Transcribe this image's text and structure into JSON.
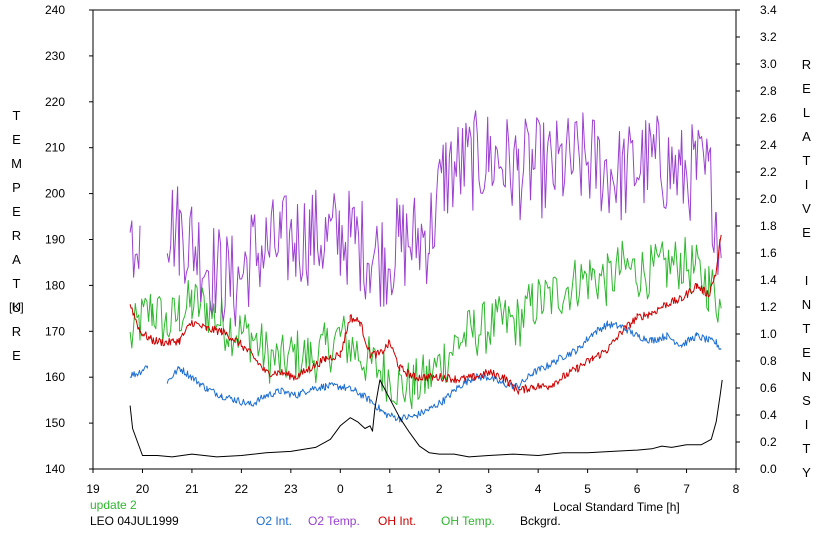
{
  "chart_data": {
    "type": "line",
    "xlabel": "Local Standard Time [h]",
    "y_left_label": "TEMPERATURE",
    "y_left_unit": "[K]",
    "y_right_label": "RELATIVE INTENSITY",
    "x_tick_labels": [
      "19",
      "20",
      "21",
      "22",
      "23",
      "0",
      "1",
      "2",
      "3",
      "4",
      "5",
      "6",
      "7",
      "8"
    ],
    "x_range": [
      19,
      32
    ],
    "y_left_ticks": [
      140,
      150,
      160,
      170,
      180,
      190,
      200,
      210,
      220,
      230,
      240
    ],
    "y_left_range": [
      140,
      240
    ],
    "y_right_ticks": [
      "0.0",
      "0.2",
      "0.4",
      "0.6",
      "0.8",
      "1.0",
      "1.2",
      "1.4",
      "1.6",
      "1.8",
      "2.0",
      "2.2",
      "2.4",
      "2.6",
      "2.8",
      "3.0",
      "3.2",
      "3.4"
    ],
    "y_right_range": [
      0,
      3.4
    ],
    "grid": false,
    "legend_position": "bottom",
    "update_note": "update 2",
    "station_date": "LEO 04JUL1999",
    "series": [
      {
        "name": "O2 Int.",
        "color": "#1e6fd0",
        "axis": "left",
        "style": "smooth",
        "amp": 0.8,
        "x": [
          19.75,
          19.9,
          20.1,
          20.35,
          20.5,
          20.75,
          21.0,
          21.3,
          21.6,
          21.9,
          22.2,
          22.5,
          22.8,
          23.1,
          23.4,
          23.7,
          24.0,
          24.3,
          24.6,
          24.9,
          25.2,
          25.5,
          25.8,
          26.1,
          26.4,
          26.7,
          27.0,
          27.3,
          27.6,
          27.9,
          28.2,
          28.5,
          28.8,
          29.1,
          29.4,
          29.7,
          30.0,
          30.3,
          30.6,
          30.9,
          31.2,
          31.45,
          31.6,
          31.7
        ],
        "y": [
          160.5,
          160.8,
          162.5,
          null,
          159,
          162,
          160,
          157.5,
          156,
          155,
          154,
          156,
          157,
          156,
          157.5,
          158,
          158,
          157,
          155,
          152,
          151,
          151.5,
          153,
          155,
          158,
          160,
          160,
          158.5,
          158,
          161,
          162.5,
          164.5,
          166,
          169.5,
          171.5,
          171,
          169,
          168,
          169,
          167,
          169,
          168,
          167.5,
          166
        ]
      },
      {
        "name": "O2 Temp.",
        "color": "#9b40d0",
        "axis": "left",
        "style": "noisy",
        "amp": 11,
        "x": [
          19.75,
          19.95,
          20.2,
          20.5,
          20.75,
          21.0,
          21.3,
          21.6,
          21.9,
          22.2,
          22.5,
          22.8,
          23.1,
          23.4,
          23.7,
          24.0,
          24.3,
          24.6,
          24.9,
          25.2,
          25.5,
          25.8,
          26.1,
          26.4,
          26.7,
          27.0,
          27.3,
          27.6,
          27.9,
          28.2,
          28.5,
          28.8,
          29.1,
          29.4,
          29.7,
          30.0,
          30.3,
          30.6,
          30.9,
          31.2,
          31.45,
          31.6,
          31.7
        ],
        "y": [
          190,
          193,
          null,
          194,
          192,
          190,
          185,
          182,
          180,
          187,
          188,
          189,
          190,
          191,
          190,
          191,
          190,
          187,
          186,
          189,
          190,
          191,
          204,
          206,
          207,
          208,
          207,
          205,
          206,
          205,
          206,
          207,
          207,
          205,
          204,
          206,
          207,
          206,
          204,
          205,
          203,
          196,
          186
        ]
      },
      {
        "name": "OH Int.",
        "color": "#cc0000",
        "axis": "left",
        "style": "smooth",
        "amp": 0.9,
        "x": [
          19.75,
          19.95,
          20.2,
          20.5,
          20.75,
          21.0,
          21.3,
          21.6,
          21.9,
          22.2,
          22.5,
          22.8,
          23.1,
          23.4,
          23.7,
          24.0,
          24.2,
          24.4,
          24.6,
          24.8,
          25.0,
          25.2,
          25.5,
          25.8,
          26.1,
          26.4,
          26.7,
          27.0,
          27.3,
          27.6,
          27.9,
          28.2,
          28.5,
          28.8,
          29.1,
          29.4,
          29.7,
          30.0,
          30.3,
          30.6,
          30.9,
          31.2,
          31.45,
          31.6,
          31.7
        ],
        "y": [
          176,
          170,
          168,
          167.5,
          168,
          172,
          170.5,
          170,
          168,
          165,
          161,
          161,
          160,
          162,
          164,
          165,
          173,
          172,
          165,
          165,
          167.5,
          162,
          160,
          160,
          160,
          159.5,
          160,
          161,
          160,
          157,
          158,
          158,
          160,
          162,
          164,
          166,
          170,
          173,
          174,
          176,
          177,
          180,
          178,
          183,
          191
        ]
      },
      {
        "name": "OH Temp.",
        "color": "#2eb82e",
        "axis": "left",
        "style": "noisy",
        "amp": 6,
        "x": [
          19.75,
          19.95,
          20.2,
          20.5,
          20.75,
          21.0,
          21.3,
          21.6,
          21.9,
          22.2,
          22.5,
          22.8,
          23.1,
          23.4,
          23.7,
          24.0,
          24.3,
          24.6,
          24.9,
          25.2,
          25.5,
          25.8,
          26.1,
          26.4,
          26.7,
          27.0,
          27.3,
          27.6,
          27.9,
          28.2,
          28.5,
          28.8,
          29.1,
          29.4,
          29.7,
          30.0,
          30.3,
          30.6,
          30.9,
          31.2,
          31.45,
          31.6,
          31.7
        ],
        "y": [
          168,
          172,
          175,
          171,
          174,
          176,
          175,
          172,
          170,
          169,
          165,
          163,
          165,
          164,
          166,
          169,
          166,
          163,
          161,
          158,
          158,
          160,
          164,
          168,
          170,
          171,
          172,
          172,
          176,
          177,
          179,
          181,
          182,
          181,
          184,
          183,
          183,
          184,
          185,
          183,
          180,
          178,
          175
        ]
      },
      {
        "name": "Bckgrd.",
        "color": "#000000",
        "axis": "right",
        "style": "line",
        "amp": 0,
        "x": [
          19.75,
          19.8,
          19.9,
          20.0,
          20.3,
          20.6,
          21.0,
          21.5,
          22.0,
          22.5,
          23.0,
          23.5,
          23.8,
          24.0,
          24.2,
          24.35,
          24.5,
          24.6,
          24.65,
          24.7,
          24.8,
          25.0,
          25.2,
          25.4,
          25.6,
          25.8,
          26.0,
          26.3,
          26.6,
          27.0,
          27.5,
          28.0,
          28.5,
          29.0,
          29.5,
          30.0,
          30.3,
          30.5,
          30.7,
          31.0,
          31.3,
          31.5,
          31.6,
          31.68,
          31.72
        ],
        "y": [
          0.47,
          0.3,
          0.2,
          0.1,
          0.1,
          0.09,
          0.11,
          0.09,
          0.1,
          0.12,
          0.13,
          0.16,
          0.22,
          0.32,
          0.38,
          0.35,
          0.3,
          0.32,
          0.28,
          0.45,
          0.66,
          0.52,
          0.38,
          0.27,
          0.17,
          0.12,
          0.11,
          0.11,
          0.09,
          0.1,
          0.11,
          0.1,
          0.12,
          0.12,
          0.13,
          0.14,
          0.15,
          0.17,
          0.16,
          0.18,
          0.18,
          0.22,
          0.35,
          0.55,
          0.66
        ]
      }
    ]
  }
}
